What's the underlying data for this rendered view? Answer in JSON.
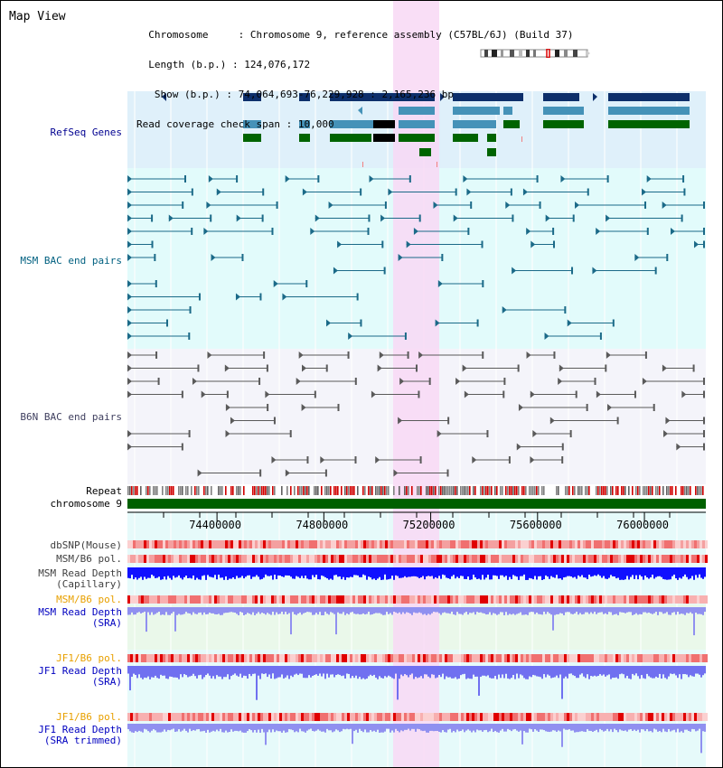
{
  "title": "Map View",
  "header": {
    "line1_key": "Chromosome",
    "line1_val": "Chromosome 9, reference assembly (C57BL/6J) (Build 37)",
    "line2_key": "Length (b.p.)",
    "line2_val": "124,076,172",
    "line3_key": "Show (b.p.)",
    "line3_val": "74,064,693-76,229,928 : 2,165,236 bp",
    "line4_key": "Read coverage check span",
    "line4_val": "10,000"
  },
  "tracks": {
    "refseq": "RefSeq Genes",
    "msm_bac": "MSM BAC end pairs",
    "b6n_bac": "B6N BAC end pairs",
    "repeat": "Repeat",
    "chromosome": "chromosome 9",
    "dbsnp": "dbSNP(Mouse)",
    "msm_b6_pol": "MSM/B6 pol.",
    "msm_read_depth_cap_1": "MSM Read Depth",
    "msm_read_depth_cap_2": "(Capillary)",
    "msm_b6_pol_2": "MSM/B6 pol.",
    "msm_read_depth_sra_1": "MSM Read Depth",
    "msm_read_depth_sra_2": "(SRA)",
    "jf1_b6_pol": "JF1/B6 pol.",
    "jf1_read_depth_sra_1": "JF1 Read Depth",
    "jf1_read_depth_sra_2": "(SRA)",
    "jf1_b6_pol_2": "JF1/B6 pol.",
    "jf1_read_depth_trim_1": "JF1 Read Depth",
    "jf1_read_depth_trim_2": "(SRA trimmed)"
  },
  "axis": {
    "ticks": [
      "74400000",
      "74800000",
      "75200000",
      "75600000",
      "76000000"
    ],
    "tick_values": [
      74400000,
      74800000,
      75200000,
      75600000,
      76000000
    ],
    "range": [
      74064693,
      76229928
    ]
  },
  "colors": {
    "refseq_bg": "#dff0fa",
    "msm_bg": "#e2fbfb",
    "b6n_bg": "#f4f4fa",
    "highlight": "#f8d8f4",
    "gene_navy": "#0d2f6b",
    "gene_teal": "#4592b8",
    "gene_green": "#006400",
    "msm_line": "#1b6a88",
    "b6n_line": "#5a5a5a",
    "label_navy": "#000090",
    "label_teal": "#006080",
    "label_gray": "#404060",
    "label_orange": "#e8a000",
    "label_blue": "#0000c0",
    "chrom_green": "#006000"
  }
}
